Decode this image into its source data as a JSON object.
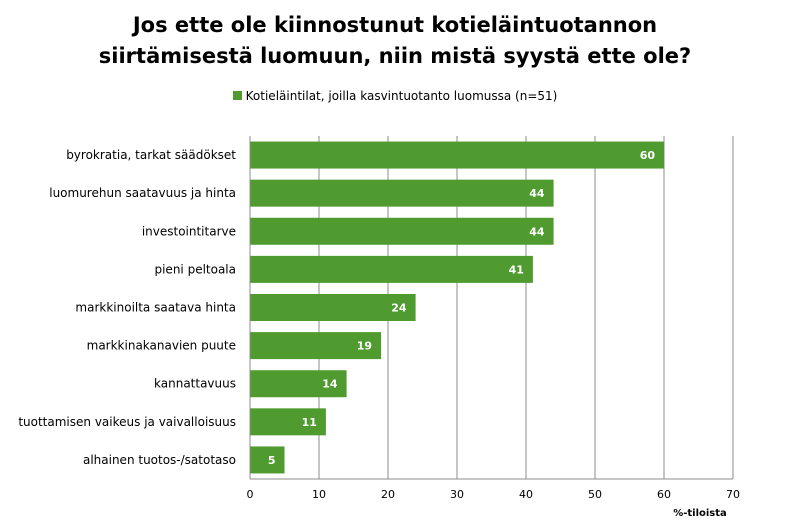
{
  "title_line1": "Jos ette ole kiinnostunut kotieläintuotannon",
  "title_line2": "siirtämisestä luomuun, niin mistä syystä ette ole?",
  "bar_color": "#4f9b2f",
  "chart_data": {
    "type": "bar",
    "orientation": "horizontal",
    "categories": [
      "byrokratia, tarkat säädökset",
      "luomurehun saatavuus ja hinta",
      "investointitarve",
      "pieni peltoala",
      "markkinoilta saatava hinta",
      "markkinakanavien puute",
      "kannattavuus",
      "tuottamisen vaikeus ja vaivalloisuus",
      "alhainen tuotos-/satotaso"
    ],
    "series": [
      {
        "name": "Kotieläintilat, joilla kasvintuotanto luomussa (n=51)",
        "values": [
          60,
          44,
          44,
          41,
          24,
          19,
          14,
          11,
          5
        ]
      }
    ],
    "xlabel": "%-tiloista",
    "xlim": [
      0,
      70
    ],
    "xticks": [
      0,
      10,
      20,
      30,
      40,
      50,
      60,
      70
    ],
    "grid": "vertical",
    "legend_position": "top"
  }
}
